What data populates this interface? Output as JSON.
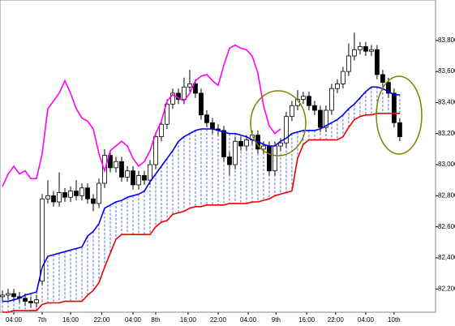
{
  "chart_data": {
    "type": "candlestick",
    "open": [
      82150,
      82160,
      82170,
      82150,
      82140,
      82120,
      82110,
      82250,
      82780,
      82800,
      82760,
      82820,
      82790,
      82830,
      82800,
      82850,
      82780,
      82750,
      82880,
      83060,
      82980,
      83020,
      82920,
      82960,
      82870,
      82930,
      82900,
      83000,
      83180,
      83260,
      83390,
      83460,
      83420,
      83500,
      83520,
      83460,
      83320,
      83270,
      83230,
      83220,
      83050,
      83000,
      83150,
      83120,
      83160,
      83190,
      83100,
      83120,
      82960,
      83120,
      83140,
      83310,
      83380,
      83420,
      83440,
      83380,
      83350,
      83240,
      83350,
      83490,
      83520,
      83600,
      83700,
      83740,
      83760,
      83730,
      83740,
      83580,
      83530,
      83460,
      83270
    ],
    "high": [
      82190,
      82200,
      82200,
      82180,
      82170,
      82150,
      82160,
      82810,
      82900,
      82830,
      82950,
      82850,
      82860,
      82900,
      82880,
      82880,
      82810,
      82910,
      83100,
      83090,
      83050,
      83050,
      82990,
      82990,
      82960,
      82960,
      83030,
      83210,
      83290,
      83420,
      83490,
      83490,
      83560,
      83610,
      83550,
      83490,
      83350,
      83300,
      83260,
      83250,
      83080,
      83180,
      83180,
      83190,
      83220,
      83220,
      83150,
      83150,
      83150,
      83170,
      83340,
      83410,
      83480,
      83470,
      83470,
      83410,
      83380,
      83380,
      83520,
      83550,
      83630,
      83780,
      83850,
      83790,
      83790,
      83770,
      83770,
      83610,
      83560,
      83490,
      83300
    ],
    "low": [
      82120,
      82130,
      82120,
      82110,
      82090,
      82080,
      82080,
      82220,
      82750,
      82730,
      82730,
      82760,
      82760,
      82770,
      82770,
      82750,
      82700,
      82720,
      82850,
      82950,
      82950,
      82890,
      82890,
      82840,
      82840,
      82870,
      82870,
      82970,
      83150,
      83230,
      83360,
      83390,
      83390,
      83470,
      83430,
      83290,
      83240,
      83200,
      83190,
      83020,
      82930,
      82970,
      83090,
      83090,
      83130,
      83070,
      83070,
      82930,
      82930,
      83090,
      83110,
      83280,
      83350,
      83390,
      83350,
      83320,
      83210,
      83210,
      83320,
      83460,
      83490,
      83570,
      83670,
      83710,
      83700,
      83700,
      83550,
      83500,
      83430,
      83240,
      83150
    ],
    "close": [
      82160,
      82170,
      82150,
      82140,
      82120,
      82110,
      82130,
      82780,
      82800,
      82760,
      82820,
      82790,
      82830,
      82800,
      82850,
      82780,
      82750,
      82880,
      83060,
      82980,
      83020,
      82920,
      82960,
      82870,
      82930,
      82900,
      83000,
      83180,
      83260,
      83390,
      83460,
      83420,
      83500,
      83520,
      83460,
      83320,
      83270,
      83230,
      83220,
      83050,
      83000,
      83150,
      83120,
      83160,
      83190,
      83100,
      83120,
      82960,
      83120,
      83140,
      83310,
      83380,
      83420,
      83440,
      83380,
      83350,
      83240,
      83350,
      83490,
      83520,
      83600,
      83700,
      83740,
      83760,
      83730,
      83740,
      83580,
      83530,
      83460,
      83270,
      83180
    ],
    "lines": [
      {
        "color": "#ff00ff",
        "values": [
          82860,
          82940,
          82990,
          82940,
          82960,
          82910,
          82910,
          83070,
          83360,
          83410,
          83460,
          83540,
          83460,
          83360,
          83300,
          83280,
          83230,
          83070,
          82960,
          83090,
          83120,
          83150,
          83120,
          83040,
          82990,
          83020,
          83090,
          83200,
          83280,
          83410,
          83450,
          83430,
          83410,
          83460,
          83540,
          83570,
          83580,
          83540,
          83510,
          83640,
          83750,
          83770,
          83750,
          83740,
          83700,
          83590,
          83380,
          83250,
          83200,
          83230,
          null,
          null,
          null,
          null,
          null,
          null,
          null,
          null,
          null,
          null,
          null,
          null,
          null,
          null,
          null,
          null,
          null,
          null,
          null,
          null,
          null
        ]
      },
      {
        "color": "#0000ee",
        "values": [
          82120,
          82120,
          82130,
          82140,
          82160,
          82170,
          82180,
          82340,
          82410,
          82420,
          82430,
          82440,
          82450,
          82460,
          82470,
          82540,
          82570,
          82620,
          82720,
          82740,
          82760,
          82770,
          82790,
          82800,
          82810,
          82830,
          82890,
          82940,
          82990,
          83040,
          83090,
          83150,
          83180,
          83200,
          83220,
          83230,
          83230,
          83230,
          83220,
          83210,
          83200,
          83200,
          83190,
          83180,
          83160,
          83150,
          83130,
          83120,
          83120,
          83150,
          83170,
          83200,
          83210,
          83220,
          83220,
          83220,
          83230,
          83250,
          83270,
          83290,
          83320,
          83360,
          83390,
          83430,
          83470,
          83500,
          83500,
          83490,
          83470,
          83450,
          83450
        ]
      },
      {
        "color": "#ee0000",
        "values": [
          82050,
          82050,
          82060,
          82060,
          82060,
          82060,
          82060,
          82100,
          82110,
          82110,
          82110,
          82120,
          82120,
          82120,
          82120,
          82160,
          82190,
          82240,
          82340,
          82430,
          82520,
          82550,
          82550,
          82550,
          82550,
          82550,
          82550,
          82600,
          82630,
          82640,
          82680,
          82690,
          82700,
          82720,
          82730,
          82730,
          82740,
          82740,
          82740,
          82740,
          82750,
          82750,
          82750,
          82750,
          82760,
          82760,
          82770,
          82780,
          82800,
          82810,
          82820,
          82830,
          83040,
          83130,
          83160,
          83160,
          83160,
          83160,
          83160,
          83160,
          83180,
          83240,
          83290,
          83310,
          83320,
          83320,
          83330,
          83330,
          83330,
          83330,
          83330
        ]
      }
    ],
    "cloud_color": "#3344cc",
    "xlim": [
      -0.43,
      76.3
    ],
    "xticks": [
      {
        "value": 2,
        "label": "04:00"
      },
      {
        "value": 7,
        "label": "7th"
      },
      {
        "value": 12,
        "label": "16:00"
      },
      {
        "value": 17.5,
        "label": "22:00"
      },
      {
        "value": 23,
        "label": "04:00"
      },
      {
        "value": 27,
        "label": "8th"
      },
      {
        "value": 32.7,
        "label": "16:00"
      },
      {
        "value": 38,
        "label": "22:00"
      },
      {
        "value": 43.3,
        "label": "04:00"
      },
      {
        "value": 48.2,
        "label": "9th"
      },
      {
        "value": 53.6,
        "label": "16:00"
      },
      {
        "value": 58.7,
        "label": "22:00"
      },
      {
        "value": 64,
        "label": "04:00"
      },
      {
        "value": 69,
        "label": "10th"
      }
    ],
    "ylim": [
      82050,
      84060
    ],
    "yticks": [
      {
        "value": 82200,
        "label": "82,200"
      },
      {
        "value": 82400,
        "label": "82,400"
      },
      {
        "value": 82600,
        "label": "82,600"
      },
      {
        "value": 82800,
        "label": "82,800"
      },
      {
        "value": 83000,
        "label": "83,000"
      },
      {
        "value": 83200,
        "label": "83,200"
      },
      {
        "value": 83400,
        "label": "83,400"
      },
      {
        "value": 83600,
        "label": "83,600"
      },
      {
        "value": 83800,
        "label": "83,800"
      }
    ]
  }
}
